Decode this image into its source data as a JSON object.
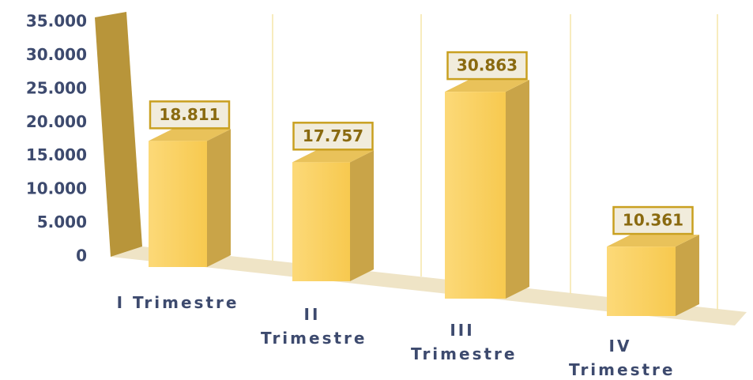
{
  "chart_data": {
    "type": "bar3d",
    "categories": [
      "I Trimestre",
      "II Trimestre",
      "III Trimestre",
      "IV Trimestre"
    ],
    "values": [
      18811,
      17757,
      30863,
      10361
    ],
    "value_labels": [
      "18.811",
      "17.757",
      "30.863",
      "10.361"
    ],
    "color": "#fbd46a",
    "ylim": [
      0,
      35000
    ],
    "yticks": [
      {
        "value": 0,
        "label": "0"
      },
      {
        "value": 5000,
        "label": "5.000"
      },
      {
        "value": 10000,
        "label": "10.000"
      },
      {
        "value": 15000,
        "label": "15.000"
      },
      {
        "value": 20000,
        "label": "20.000"
      },
      {
        "value": 25000,
        "label": "25.000"
      },
      {
        "value": 30000,
        "label": "30.000"
      },
      {
        "value": 35000,
        "label": "35.000"
      }
    ]
  }
}
